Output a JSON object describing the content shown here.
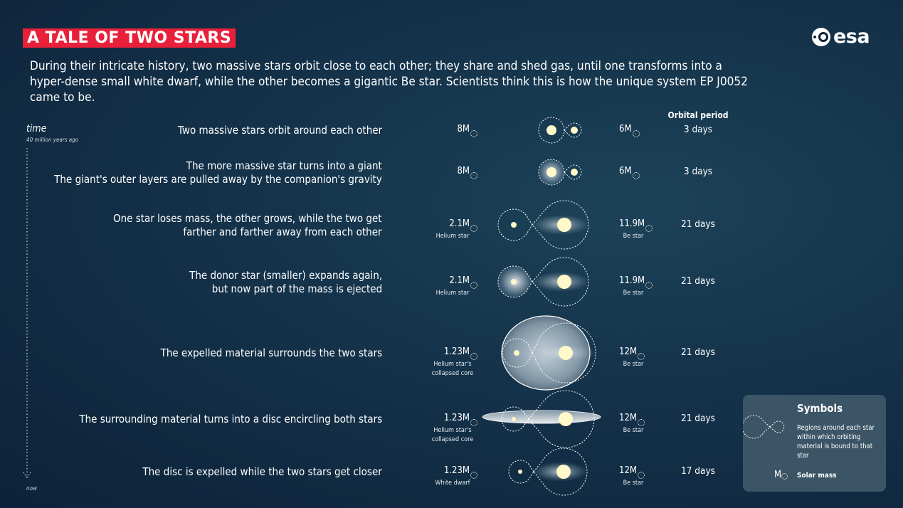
{
  "header": {
    "title": "A TALE OF TWO STARS",
    "intro": "During their intricate history, two massive stars orbit close to each other; they share and shed gas, until one transforms into a hyper-dense small white dwarf, while the other becomes a gigantic Be star. Scientists think this is how the unique system EP J0052 came to be.",
    "logo": "esa"
  },
  "timeline": {
    "label": "time",
    "start": "40 million years ago",
    "end": "now"
  },
  "columns": {
    "orbital_period": "Orbital period"
  },
  "mass_unit_symbol": "M",
  "stages": [
    {
      "description": [
        "Two massive stars orbit around each other"
      ],
      "left_mass": "8",
      "left_label": "",
      "right_mass": "6",
      "right_label": "",
      "period": "3 days"
    },
    {
      "description": [
        "The more massive star turns into a giant",
        "The giant's outer layers are pulled away by the companion's gravity"
      ],
      "left_mass": "8",
      "left_label": "",
      "right_mass": "6",
      "right_label": "",
      "period": "3 days"
    },
    {
      "description": [
        "One star loses mass, the other grows, while the two get",
        "farther and farther away from each other"
      ],
      "left_mass": "2.1",
      "left_label": "Helium star",
      "right_mass": "11.9",
      "right_label": "Be star",
      "period": "21 days"
    },
    {
      "description": [
        "The donor star (smaller) expands again,",
        "but now part of the mass is ejected"
      ],
      "left_mass": "2.1",
      "left_label": "Helium star",
      "right_mass": "11.9",
      "right_label": "Be star",
      "period": "21 days"
    },
    {
      "description": [
        "The expelled material surrounds the two stars"
      ],
      "left_mass": "1.23",
      "left_label": "Helium star's collapsed core",
      "right_mass": "12",
      "right_label": "Be star",
      "period": "21 days"
    },
    {
      "description": [
        "The surrounding material turns into a disc encircling both stars"
      ],
      "left_mass": "1.23",
      "left_label": "Helium star's collapsed core",
      "right_mass": "12",
      "right_label": "Be star",
      "period": "21 days"
    },
    {
      "description": [
        "The disc is expelled while the two stars get closer"
      ],
      "left_mass": "1.23",
      "left_label": "White dwarf",
      "right_mass": "12",
      "right_label": "Be star",
      "period": "17 days"
    }
  ],
  "legend": {
    "title": "Symbols",
    "roche_text": "Regions around each star within which orbiting material is bound to that star",
    "mass_symbol": "M",
    "mass_text": "Solar mass"
  },
  "colors": {
    "title_bg": "#e8203a",
    "background": "#14324a",
    "star": "#fff8c8",
    "legend_bg": "#3b5566"
  }
}
